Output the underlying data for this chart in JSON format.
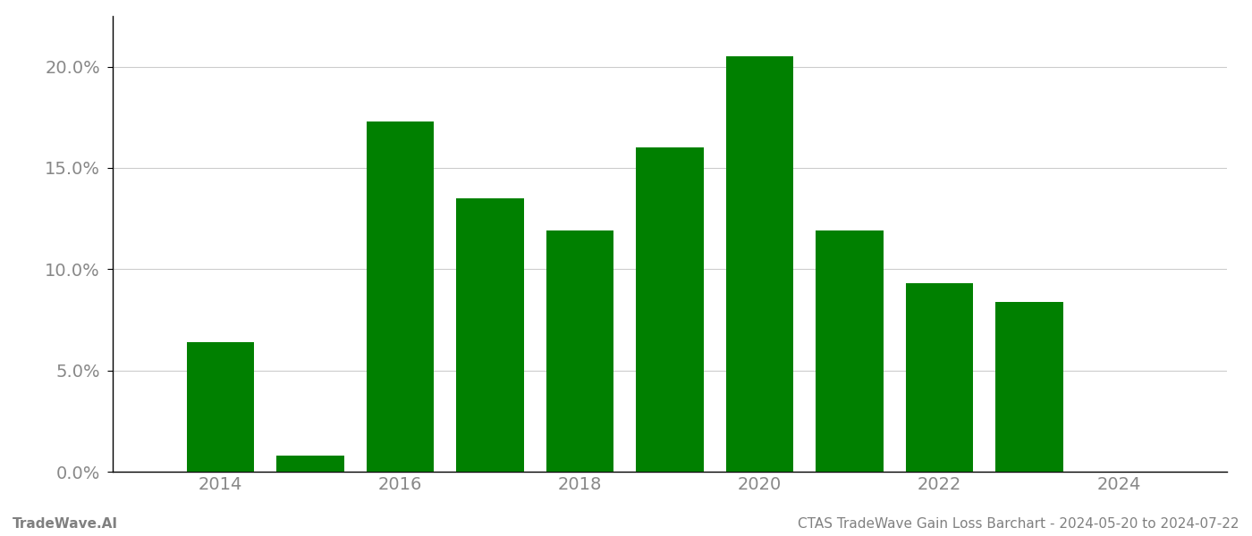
{
  "years": [
    2014,
    2015,
    2016,
    2017,
    2018,
    2019,
    2020,
    2021,
    2022,
    2023
  ],
  "values": [
    0.064,
    0.008,
    0.173,
    0.135,
    0.119,
    0.16,
    0.205,
    0.119,
    0.093,
    0.084
  ],
  "bar_color": "#008000",
  "background_color": "#ffffff",
  "grid_color": "#cccccc",
  "footer_left": "TradeWave.AI",
  "footer_right": "CTAS TradeWave Gain Loss Barchart - 2024-05-20 to 2024-07-22",
  "footer_color": "#808080",
  "footer_fontsize": 11,
  "xlim": [
    2012.8,
    2025.2
  ],
  "ylim": [
    0.0,
    0.225
  ],
  "yticks": [
    0.0,
    0.05,
    0.1,
    0.15,
    0.2
  ],
  "ytick_labels": [
    "0.0%",
    "5.0%",
    "10.0%",
    "15.0%",
    "20.0%"
  ],
  "xtick_labels": [
    "2014",
    "2016",
    "2018",
    "2020",
    "2022",
    "2024"
  ],
  "xtick_positions": [
    2014,
    2016,
    2018,
    2020,
    2022,
    2024
  ],
  "bar_width": 0.75,
  "tick_color": "#888888",
  "spine_color": "#000000",
  "tick_fontsize": 14
}
